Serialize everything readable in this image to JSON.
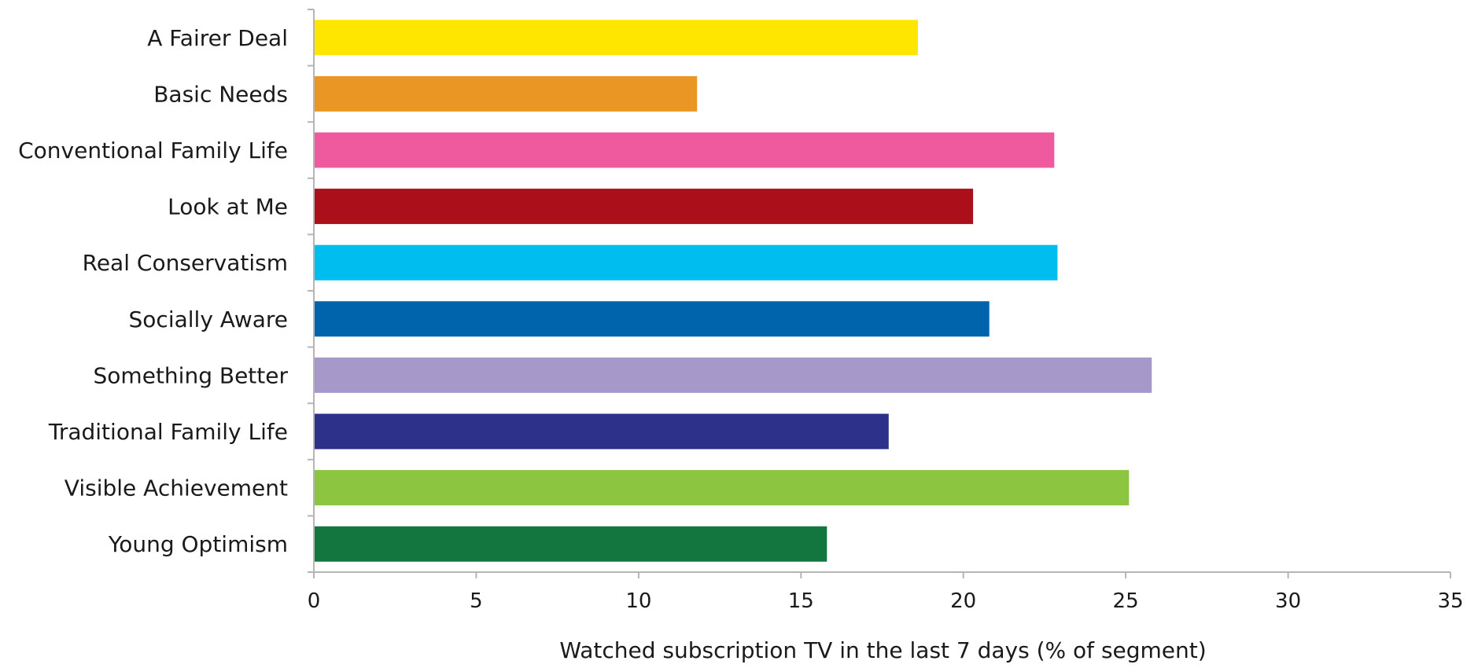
{
  "chart_data": {
    "type": "bar",
    "orientation": "horizontal",
    "title": "",
    "xlabel": "Watched subscription TV in the last 7 days (% of segment)",
    "ylabel": "",
    "xlim": [
      0,
      35
    ],
    "xticks": [
      0,
      5,
      10,
      15,
      20,
      25,
      30,
      35
    ],
    "grid": false,
    "legend": "none",
    "categories": [
      "A Fairer Deal",
      "Basic Needs",
      "Conventional Family Life",
      "Look at Me",
      "Real Conservatism",
      "Socially Aware",
      "Something Better",
      "Traditional Family Life",
      "Visible Achievement",
      "Young Optimism"
    ],
    "values": [
      18.6,
      11.8,
      22.8,
      20.3,
      22.9,
      20.8,
      25.8,
      17.7,
      25.1,
      15.8
    ],
    "colors": [
      "#ffe600",
      "#e99625",
      "#ef5a9e",
      "#ab101a",
      "#00bdef",
      "#0064ad",
      "#a699ca",
      "#2e3189",
      "#8cc540",
      "#13763f"
    ]
  }
}
